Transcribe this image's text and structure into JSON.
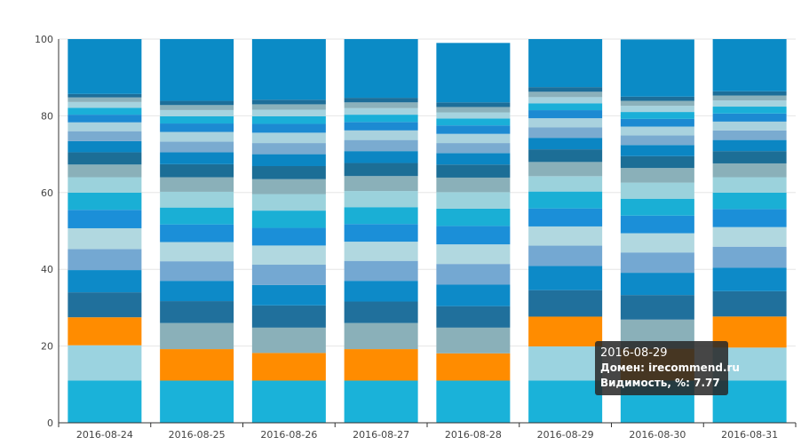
{
  "chart_data": {
    "type": "bar",
    "stacked": true,
    "title": "",
    "xlabel": "",
    "ylabel": "",
    "ylim": [
      0,
      100
    ],
    "y_ticks": [
      0,
      20,
      40,
      60,
      80,
      100
    ],
    "grid": true,
    "categories": [
      "2016-08-24",
      "2016-08-25",
      "2016-08-26",
      "2016-08-27",
      "2016-08-28",
      "2016-08-29",
      "2016-08-30",
      "2016-08-31"
    ],
    "colors": [
      "#1ab2d9",
      "#9bd3e0",
      "#ff8c00",
      "#20709c",
      "#0d8ac8",
      "#74a8d2",
      "#b1d8e0",
      "#1b8fd8",
      "#1aafd5",
      "#9bd2dc",
      "#8ab0b9",
      "#1c6e96",
      "#0b86c3",
      "#7aabd0",
      "#a9d2de",
      "#1c8ad2",
      "#1aafd8",
      "#a5d3df",
      "#8bb1bb",
      "#1d6e99",
      "#0b8bc6"
    ],
    "series": [
      {
        "values": [
          11.0,
          11.0,
          11.0,
          11.0,
          11.0,
          11.0,
          11.0,
          11.0
        ]
      },
      {
        "values": [
          9.2,
          0,
          0,
          0,
          0,
          8.9,
          0,
          8.6
        ]
      },
      {
        "values": [
          7.3,
          8.2,
          7.2,
          8.2,
          7.1,
          7.77,
          8.3,
          8.1
        ]
      },
      {
        "values": [
          6.5,
          0,
          0,
          0,
          0,
          0,
          0,
          0
        ]
      },
      {
        "values": [
          5.8,
          0,
          0,
          0,
          0,
          0,
          0,
          0
        ]
      },
      {
        "values": [
          5.5,
          0,
          0,
          0,
          0,
          0,
          0,
          0
        ]
      },
      {
        "values": [
          5.4,
          0,
          0,
          0,
          0,
          0,
          0,
          0
        ]
      },
      {
        "values": [
          4.8,
          0,
          0,
          0,
          0,
          0,
          0,
          0
        ]
      },
      {
        "values": [
          4.5,
          0,
          0,
          0,
          0,
          0,
          0,
          0
        ]
      },
      {
        "values": [
          4.0,
          0,
          0,
          0,
          0,
          0,
          0,
          0
        ]
      },
      {
        "values": [
          3.3,
          0,
          0,
          0,
          0,
          0,
          0,
          0
        ]
      },
      {
        "values": [
          3.2,
          0,
          0,
          0,
          0,
          0,
          0,
          0
        ]
      },
      {
        "values": [
          2.9,
          0,
          0,
          0,
          0,
          0,
          0,
          0
        ]
      },
      {
        "values": [
          2.6,
          0,
          0,
          0,
          0,
          0,
          0,
          0
        ]
      },
      {
        "values": [
          2.3,
          0,
          0,
          0,
          0,
          0,
          0,
          0
        ]
      },
      {
        "values": [
          2.0,
          0,
          0,
          0,
          0,
          0,
          0,
          0
        ]
      },
      {
        "values": [
          1.8,
          0,
          0,
          0,
          0,
          0,
          0,
          0
        ]
      },
      {
        "values": [
          1.5,
          0,
          0,
          0,
          0,
          0,
          0,
          0
        ]
      },
      {
        "values": [
          1.2,
          0,
          0,
          0,
          0,
          0,
          0,
          0
        ]
      },
      {
        "values": [
          0.9,
          0,
          0,
          0,
          0,
          0,
          0,
          0
        ]
      },
      {
        "values": [
          15.0,
          0,
          0,
          0,
          0,
          0,
          0,
          0
        ]
      }
    ],
    "stacks": [
      [
        11.0,
        9.2,
        7.3,
        6.5,
        5.8,
        5.5,
        5.4,
        4.8,
        4.5,
        4.0,
        3.3,
        3.2,
        2.9,
        2.6,
        2.3,
        2.0,
        1.8,
        1.5,
        1.2,
        0.9,
        15.0
      ],
      [
        11.0,
        8.2,
        6.8,
        5.7,
        5.3,
        5.1,
        5.0,
        4.6,
        4.4,
        4.1,
        3.8,
        3.4,
        3.1,
        2.8,
        2.5,
        2.2,
        1.9,
        1.6,
        1.3,
        1.1,
        16.1
      ],
      [
        11.0,
        7.2,
        6.6,
        5.8,
        5.3,
        5.3,
        5.0,
        4.6,
        4.5,
        4.3,
        3.9,
        3.4,
        3.1,
        2.9,
        2.7,
        2.3,
        2.0,
        1.7,
        1.4,
        1.2,
        15.8
      ],
      [
        11.0,
        8.2,
        6.8,
        5.6,
        5.4,
        5.2,
        5.0,
        4.6,
        4.4,
        4.2,
        3.9,
        3.4,
        3.1,
        2.9,
        2.5,
        2.2,
        1.9,
        1.7,
        1.5,
        1.2,
        15.3
      ],
      [
        11.0,
        7.1,
        6.7,
        5.6,
        5.6,
        5.4,
        5.1,
        4.8,
        4.5,
        4.3,
        3.8,
        3.4,
        3.0,
        2.6,
        2.4,
        2.2,
        1.8,
        1.6,
        1.4,
        1.2,
        15.5
      ],
      [
        11.0,
        8.9,
        7.77,
        6.9,
        6.3,
        5.3,
        5.0,
        4.7,
        4.4,
        4.0,
        3.7,
        3.3,
        3.0,
        2.7,
        2.4,
        2.1,
        1.8,
        1.6,
        1.4,
        1.2,
        14.73
      ],
      [
        11.0,
        8.3,
        7.6,
        6.4,
        5.8,
        5.3,
        5.0,
        4.6,
        4.4,
        4.2,
        3.8,
        3.1,
        2.9,
        2.5,
        2.3,
        2.0,
        1.8,
        1.6,
        1.3,
        1.1,
        14.9
      ],
      [
        11.0,
        8.6,
        8.1,
        6.6,
        6.1,
        5.5,
        5.1,
        4.7,
        4.3,
        4.0,
        3.6,
        3.2,
        2.9,
        2.5,
        2.3,
        2.1,
        1.8,
        1.6,
        1.3,
        1.1,
        14.4
      ]
    ],
    "stack_colors": [
      [
        "#1ab2d9",
        "#9bd3e0",
        "#ff8c00",
        "#20709c",
        "#0d8ac8",
        "#74a8d2",
        "#b1d8e0",
        "#1b8fd8",
        "#1aafd5",
        "#9bd2dc",
        "#8ab0b9",
        "#1c6e96",
        "#0b86c3",
        "#7aabd0",
        "#a9d2de",
        "#1c8ad2",
        "#1aafd8",
        "#a5d3df",
        "#8bb1bb",
        "#1d6e99",
        "#0b8bc6"
      ],
      [
        "#1ab2d9",
        "#ff8c00",
        "#8ab0b9",
        "#20709c",
        "#0d8ac8",
        "#74a8d2",
        "#b1d8e0",
        "#1b8fd8",
        "#1aafd5",
        "#9bd2dc",
        "#8ab0b9",
        "#1c6e96",
        "#0b86c3",
        "#7aabd0",
        "#a9d2de",
        "#1c8ad2",
        "#1aafd8",
        "#a5d3df",
        "#8bb1bb",
        "#1d6e99",
        "#0b8bc6"
      ],
      [
        "#1ab2d9",
        "#ff8c00",
        "#8ab0b9",
        "#20709c",
        "#0d8ac8",
        "#74a8d2",
        "#b1d8e0",
        "#1b8fd8",
        "#1aafd5",
        "#9bd2dc",
        "#8ab0b9",
        "#1c6e96",
        "#0b86c3",
        "#7aabd0",
        "#a9d2de",
        "#1c8ad2",
        "#1aafd8",
        "#a5d3df",
        "#8bb1bb",
        "#1d6e99",
        "#0b8bc6"
      ],
      [
        "#1ab2d9",
        "#ff8c00",
        "#8ab0b9",
        "#20709c",
        "#0d8ac8",
        "#74a8d2",
        "#b1d8e0",
        "#1b8fd8",
        "#1aafd5",
        "#9bd2dc",
        "#8ab0b9",
        "#1c6e96",
        "#0b86c3",
        "#7aabd0",
        "#a9d2de",
        "#1c8ad2",
        "#1aafd8",
        "#a5d3df",
        "#8bb1bb",
        "#1d6e99",
        "#0b8bc6"
      ],
      [
        "#1ab2d9",
        "#ff8c00",
        "#8ab0b9",
        "#20709c",
        "#0d8ac8",
        "#74a8d2",
        "#b1d8e0",
        "#1b8fd8",
        "#1aafd5",
        "#9bd2dc",
        "#8ab0b9",
        "#1c6e96",
        "#0b86c3",
        "#7aabd0",
        "#a9d2de",
        "#1c8ad2",
        "#1aafd8",
        "#a5d3df",
        "#8bb1bb",
        "#1d6e99",
        "#0b8bc6"
      ],
      [
        "#1ab2d9",
        "#9bd3e0",
        "#ff8c00",
        "#20709c",
        "#0d8ac8",
        "#74a8d2",
        "#b1d8e0",
        "#1b8fd8",
        "#1aafd5",
        "#9bd2dc",
        "#8ab0b9",
        "#1c6e96",
        "#0b86c3",
        "#7aabd0",
        "#a9d2de",
        "#1c8ad2",
        "#1aafd8",
        "#a5d3df",
        "#8bb1bb",
        "#1d6e99",
        "#0b8bc6"
      ],
      [
        "#1ab2d9",
        "#ff8c00",
        "#8ab0b9",
        "#20709c",
        "#0d8ac8",
        "#74a8d2",
        "#b1d8e0",
        "#1b8fd8",
        "#1aafd5",
        "#9bd2dc",
        "#8ab0b9",
        "#1c6e96",
        "#0b86c3",
        "#7aabd0",
        "#a9d2de",
        "#1c8ad2",
        "#1aafd8",
        "#a5d3df",
        "#8bb1bb",
        "#1d6e99",
        "#0b8bc6"
      ],
      [
        "#1ab2d9",
        "#9bd3e0",
        "#ff8c00",
        "#20709c",
        "#0d8ac8",
        "#74a8d2",
        "#b1d8e0",
        "#1b8fd8",
        "#1aafd5",
        "#9bd2dc",
        "#8ab0b9",
        "#1c6e96",
        "#0b86c3",
        "#7aabd0",
        "#a9d2de",
        "#1c8ad2",
        "#1aafd8",
        "#a5d3df",
        "#8bb1bb",
        "#1d6e99",
        "#0b8bc6"
      ]
    ]
  },
  "tooltip": {
    "date": "2016-08-29",
    "domain_line": "Домен: irecommend.ru",
    "visibility_line": "Видимость, %: 7.77"
  }
}
